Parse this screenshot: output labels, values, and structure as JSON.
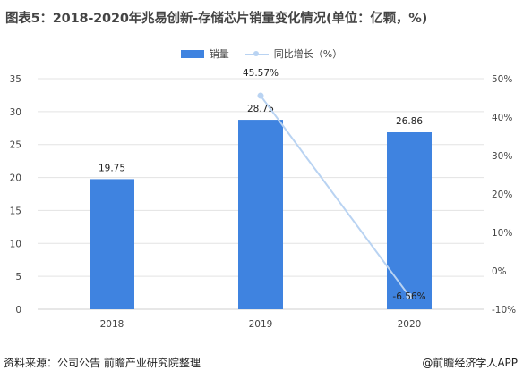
{
  "title": "图表5：2018-2020年兆易创新-存储芯片销量变化情况(单位：亿颗，%)",
  "legend": {
    "bar_label": "销量",
    "line_label": "同比增长（%）"
  },
  "colors": {
    "bar": "#3f83e0",
    "line": "#b9d3f2",
    "grid": "#e3e3e3"
  },
  "footer": {
    "source": "资料来源：公司公告 前瞻产业研究院整理",
    "credit": "@前瞻经济学人APP"
  },
  "chart_data": {
    "type": "bar",
    "categories": [
      "2018",
      "2019",
      "2020"
    ],
    "series": [
      {
        "name": "销量",
        "type": "bar",
        "axis": "left",
        "values": [
          19.75,
          28.75,
          26.86
        ],
        "labels": [
          "19.75",
          "28.75",
          "26.86"
        ]
      },
      {
        "name": "同比增长（%）",
        "type": "line",
        "axis": "right",
        "values": [
          null,
          45.57,
          -6.56
        ],
        "labels": [
          "",
          "45.57%",
          "-6.56%"
        ]
      }
    ],
    "ylim": [
      0,
      35
    ],
    "yticks": [
      "0",
      "5",
      "10",
      "15",
      "20",
      "25",
      "30",
      "35"
    ],
    "y2lim": [
      -10,
      50
    ],
    "y2ticks": [
      "-10%",
      "0%",
      "10%",
      "20%",
      "30%",
      "40%",
      "50%"
    ],
    "grid": true,
    "legend_position": "top-center"
  }
}
